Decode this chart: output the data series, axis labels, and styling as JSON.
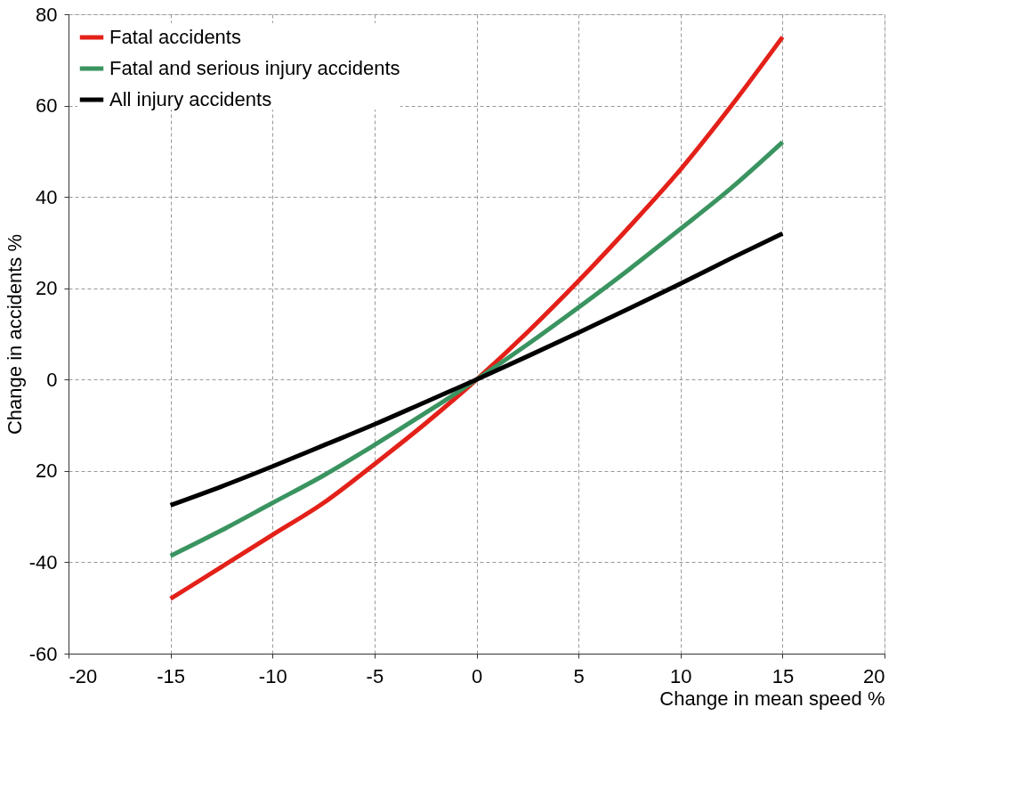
{
  "chart_data": {
    "type": "line",
    "xlabel": "Change in mean speed %",
    "ylabel": "Change in accidents %",
    "x": [
      -15,
      -12.5,
      -10,
      -7.5,
      -5,
      -2.5,
      0,
      2.5,
      5,
      7.5,
      10,
      12.5,
      15
    ],
    "series": [
      {
        "name": "Fatal accidents",
        "color": "#e32119",
        "values": [
          -48,
          -41,
          -34,
          -27,
          -18.5,
          -9.6,
          0,
          10.4,
          21.6,
          33.5,
          46,
          60,
          75
        ]
      },
      {
        "name": "Fatal and serious injury accidents",
        "color": "#3a9460",
        "values": [
          -38.6,
          -33,
          -27,
          -21,
          -14.3,
          -7.3,
          0,
          7.7,
          15.8,
          24.2,
          33,
          42,
          52
        ]
      },
      {
        "name": "All injury accidents",
        "color": "#000000",
        "values": [
          -27.5,
          -23.4,
          -19,
          -14.4,
          -9.8,
          -4.9,
          0,
          5.1,
          10.3,
          15.6,
          21,
          26.6,
          32
        ]
      }
    ],
    "xlim": [
      -20,
      20
    ],
    "xticks": [
      -20,
      -15,
      -10,
      -5,
      0,
      5,
      10,
      15,
      20
    ],
    "ylim": [
      -60,
      80
    ],
    "yticks": [
      -60,
      -40,
      {
        "value": -20,
        "label": "20"
      },
      0,
      20,
      40,
      60,
      80
    ],
    "grid": true,
    "legend": "top left",
    "marker": "none",
    "line_style": "solid"
  }
}
